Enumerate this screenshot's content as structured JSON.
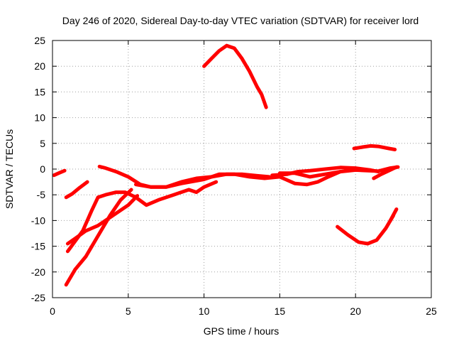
{
  "chart_data": {
    "type": "line",
    "title": "Day 246 of 2020, Sidereal Day-to-day VTEC variation (SDTVAR) for receiver lord",
    "xlabel": "GPS time / hours",
    "ylabel": "SDTVAR / TECUs",
    "xlim": [
      0,
      25
    ],
    "ylim": [
      -25,
      25
    ],
    "xticks": [
      0,
      5,
      10,
      15,
      20,
      25
    ],
    "yticks": [
      -25,
      -20,
      -15,
      -10,
      -5,
      0,
      5,
      10,
      15,
      20,
      25
    ],
    "grid": true,
    "color": "#ff0000",
    "series": [
      {
        "name": "s1",
        "points": [
          [
            0.1,
            -1.2
          ],
          [
            0.4,
            -0.8
          ],
          [
            0.8,
            -0.3
          ]
        ]
      },
      {
        "name": "s2",
        "points": [
          [
            0.9,
            -5.5
          ],
          [
            1.3,
            -4.8
          ],
          [
            1.8,
            -3.6
          ],
          [
            2.3,
            -2.5
          ]
        ]
      },
      {
        "name": "s3",
        "points": [
          [
            1.0,
            -16
          ],
          [
            1.5,
            -14
          ],
          [
            2.0,
            -12
          ],
          [
            2.6,
            -8
          ],
          [
            3.0,
            -5.5
          ],
          [
            3.5,
            -5
          ],
          [
            4.2,
            -4.5
          ],
          [
            4.8,
            -4.5
          ],
          [
            5.5,
            -5.5
          ],
          [
            6.2,
            -7
          ],
          [
            7,
            -6
          ],
          [
            8,
            -5
          ],
          [
            9,
            -4
          ],
          [
            9.5,
            -4.5
          ],
          [
            10,
            -3.5
          ],
          [
            10.8,
            -2.5
          ]
        ]
      },
      {
        "name": "s4",
        "points": [
          [
            1.0,
            -14.5
          ],
          [
            1.5,
            -13.5
          ],
          [
            2.2,
            -12
          ],
          [
            3,
            -11
          ],
          [
            4,
            -9
          ],
          [
            5,
            -7
          ],
          [
            5.6,
            -5.2
          ]
        ]
      },
      {
        "name": "s5",
        "points": [
          [
            0.9,
            -22.5
          ],
          [
            1.5,
            -19.5
          ],
          [
            2.2,
            -17
          ],
          [
            3.0,
            -13
          ],
          [
            3.8,
            -9
          ],
          [
            4.5,
            -6
          ],
          [
            5.2,
            -4
          ]
        ]
      },
      {
        "name": "s6",
        "points": [
          [
            3.1,
            0.5
          ],
          [
            3.5,
            0.2
          ],
          [
            4.2,
            -0.5
          ],
          [
            5,
            -1.5
          ],
          [
            5.8,
            -3
          ],
          [
            6.5,
            -3.5
          ],
          [
            7.5,
            -3.5
          ],
          [
            8.5,
            -2.5
          ],
          [
            9.5,
            -1.8
          ],
          [
            10.5,
            -1.5
          ],
          [
            11.5,
            -1
          ],
          [
            12.5,
            -1
          ],
          [
            13.5,
            -1.3
          ],
          [
            14.3,
            -1.5
          ]
        ]
      },
      {
        "name": "s7",
        "points": [
          [
            5.5,
            -3
          ],
          [
            6.5,
            -3.5
          ],
          [
            7.5,
            -3.5
          ],
          [
            8.5,
            -2.8
          ],
          [
            10,
            -2
          ],
          [
            11,
            -1
          ],
          [
            12,
            -1
          ],
          [
            13,
            -1.5
          ],
          [
            14,
            -1.8
          ],
          [
            15,
            -1.5
          ],
          [
            16,
            -2.8
          ],
          [
            16.8,
            -3
          ],
          [
            17.5,
            -2.5
          ],
          [
            18.2,
            -1.5
          ],
          [
            19,
            -0.5
          ]
        ]
      },
      {
        "name": "s8",
        "points": [
          [
            14.5,
            -1.2
          ],
          [
            15.5,
            -1
          ],
          [
            16.2,
            -0.5
          ],
          [
            17,
            -0.3
          ],
          [
            18,
            0
          ],
          [
            19,
            0.3
          ],
          [
            20,
            0.2
          ],
          [
            21,
            -0.2
          ],
          [
            21.5,
            -0.5
          ]
        ]
      },
      {
        "name": "s9",
        "points": [
          [
            15,
            -0.8
          ],
          [
            16,
            -0.8
          ],
          [
            17,
            -1.5
          ],
          [
            18,
            -1
          ],
          [
            19,
            -0.5
          ],
          [
            20,
            -0.2
          ],
          [
            21.5,
            -0.4
          ],
          [
            22.3,
            0.2
          ],
          [
            22.8,
            0.4
          ]
        ]
      },
      {
        "name": "s10",
        "points": [
          [
            21.2,
            -1.8
          ],
          [
            21.7,
            -1
          ],
          [
            22.2,
            -0.3
          ],
          [
            22.7,
            0.4
          ]
        ]
      },
      {
        "name": "s11",
        "points": [
          [
            10,
            20
          ],
          [
            10.5,
            21.5
          ],
          [
            11,
            23
          ],
          [
            11.5,
            24
          ],
          [
            12,
            23.5
          ],
          [
            12.5,
            21.5
          ],
          [
            13,
            19
          ],
          [
            13.5,
            16
          ],
          [
            13.8,
            14.5
          ],
          [
            14.1,
            12
          ]
        ]
      },
      {
        "name": "s12",
        "points": [
          [
            19.9,
            4
          ],
          [
            20.5,
            4.3
          ],
          [
            21,
            4.5
          ],
          [
            21.5,
            4.4
          ],
          [
            22.2,
            4
          ],
          [
            22.6,
            3.8
          ]
        ]
      },
      {
        "name": "s13",
        "points": [
          [
            18.8,
            -11.2
          ],
          [
            19.5,
            -12.8
          ],
          [
            20.2,
            -14.2
          ],
          [
            20.8,
            -14.5
          ],
          [
            21.4,
            -13.8
          ],
          [
            22,
            -11.5
          ],
          [
            22.5,
            -9
          ]
        ]
      },
      {
        "name": "s14",
        "points": [
          [
            22.3,
            -10
          ],
          [
            22.7,
            -7.8
          ]
        ]
      }
    ]
  }
}
